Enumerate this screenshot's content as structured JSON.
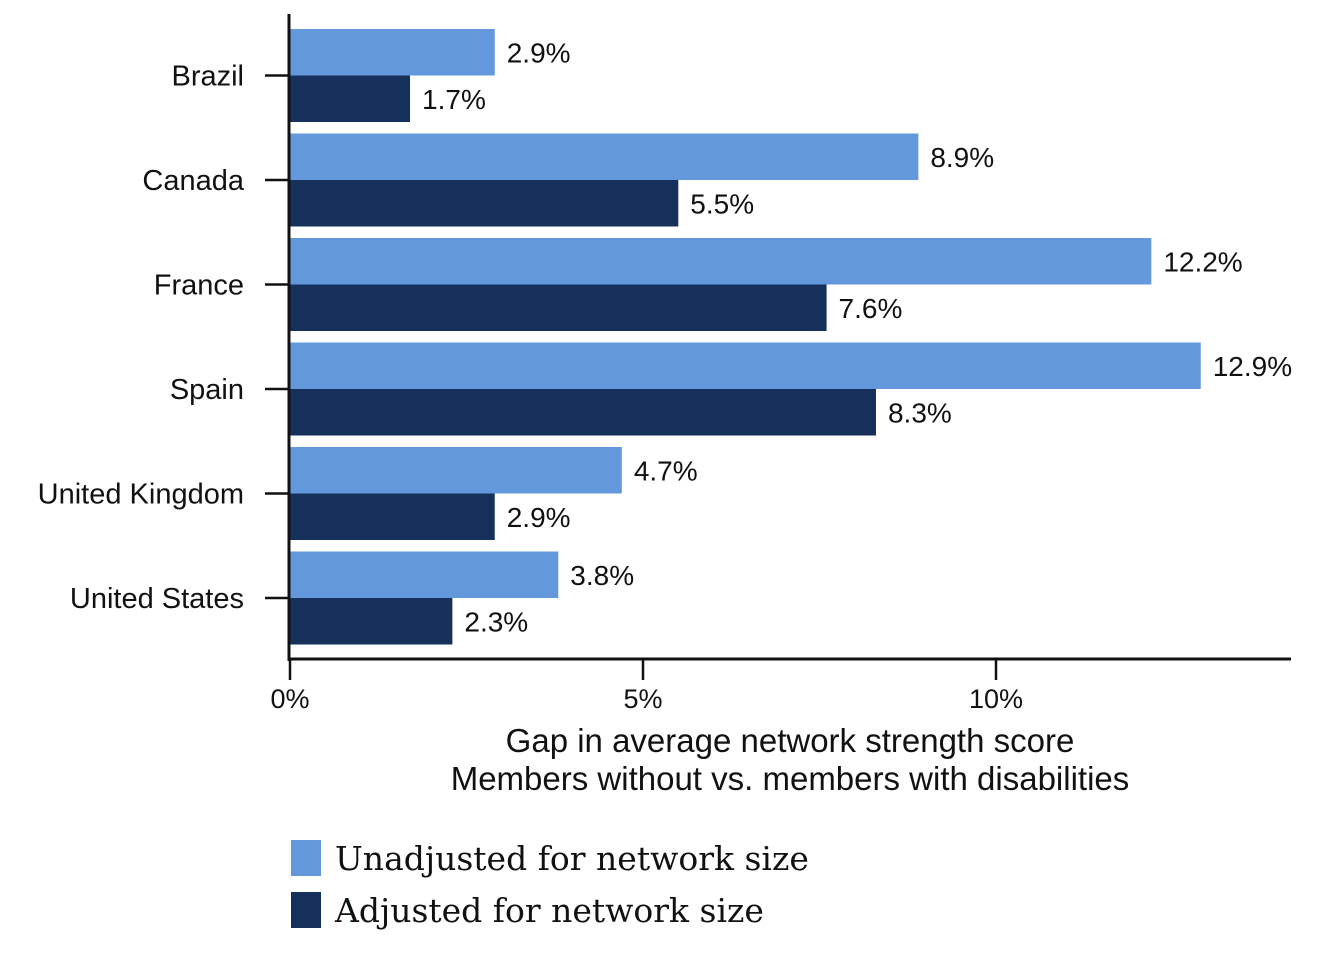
{
  "chart_data": {
    "type": "bar",
    "orientation": "horizontal",
    "categories": [
      "Brazil",
      "Canada",
      "France",
      "Spain",
      "United Kingdom",
      "United States"
    ],
    "series": [
      {
        "name": "Unadjusted for network size",
        "color": "#6498dc",
        "values": [
          2.9,
          8.9,
          12.2,
          12.9,
          4.7,
          3.8
        ],
        "labels": [
          "2.9%",
          "8.9%",
          "12.2%",
          "12.9%",
          "4.7%",
          "3.8%"
        ]
      },
      {
        "name": "Adjusted for network size",
        "color": "#16305c",
        "values": [
          1.7,
          5.5,
          7.6,
          8.3,
          2.9,
          2.3
        ],
        "labels": [
          "1.7%",
          "5.5%",
          "7.6%",
          "8.3%",
          "2.9%",
          "2.3%"
        ]
      }
    ],
    "x_ticks": [
      0,
      5,
      10
    ],
    "x_tick_labels": [
      "0%",
      "5%",
      "10%"
    ],
    "xlim": [
      0,
      14.2
    ],
    "xlabel": [
      "Gap in average network strength score",
      "Members without vs. members with disabilities"
    ],
    "ylabel": "",
    "title": "",
    "grid": false,
    "legend_position": "bottom-left"
  }
}
